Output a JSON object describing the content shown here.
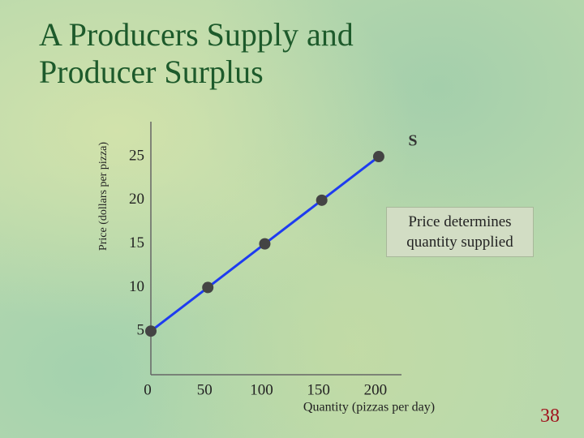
{
  "chart_data": {
    "type": "line",
    "title": "A Producers Supply and Producer Surplus",
    "x_label": "Quantity (pizzas per day)",
    "y_label": "Price (dollars per pizza)",
    "x": [
      0,
      50,
      100,
      150,
      200
    ],
    "series": [
      {
        "name": "S",
        "color": "#1e3cf0",
        "values": [
          5,
          10,
          15,
          20,
          25
        ]
      }
    ],
    "xlim": [
      0,
      220
    ],
    "ylim": [
      0,
      29
    ],
    "xticks": [
      0,
      50,
      100,
      150,
      200
    ],
    "yticks": [
      5,
      10,
      15,
      20,
      25
    ],
    "marker_color": "#444444",
    "annotation": "Price determines quantity supplied"
  },
  "page_number": "38"
}
